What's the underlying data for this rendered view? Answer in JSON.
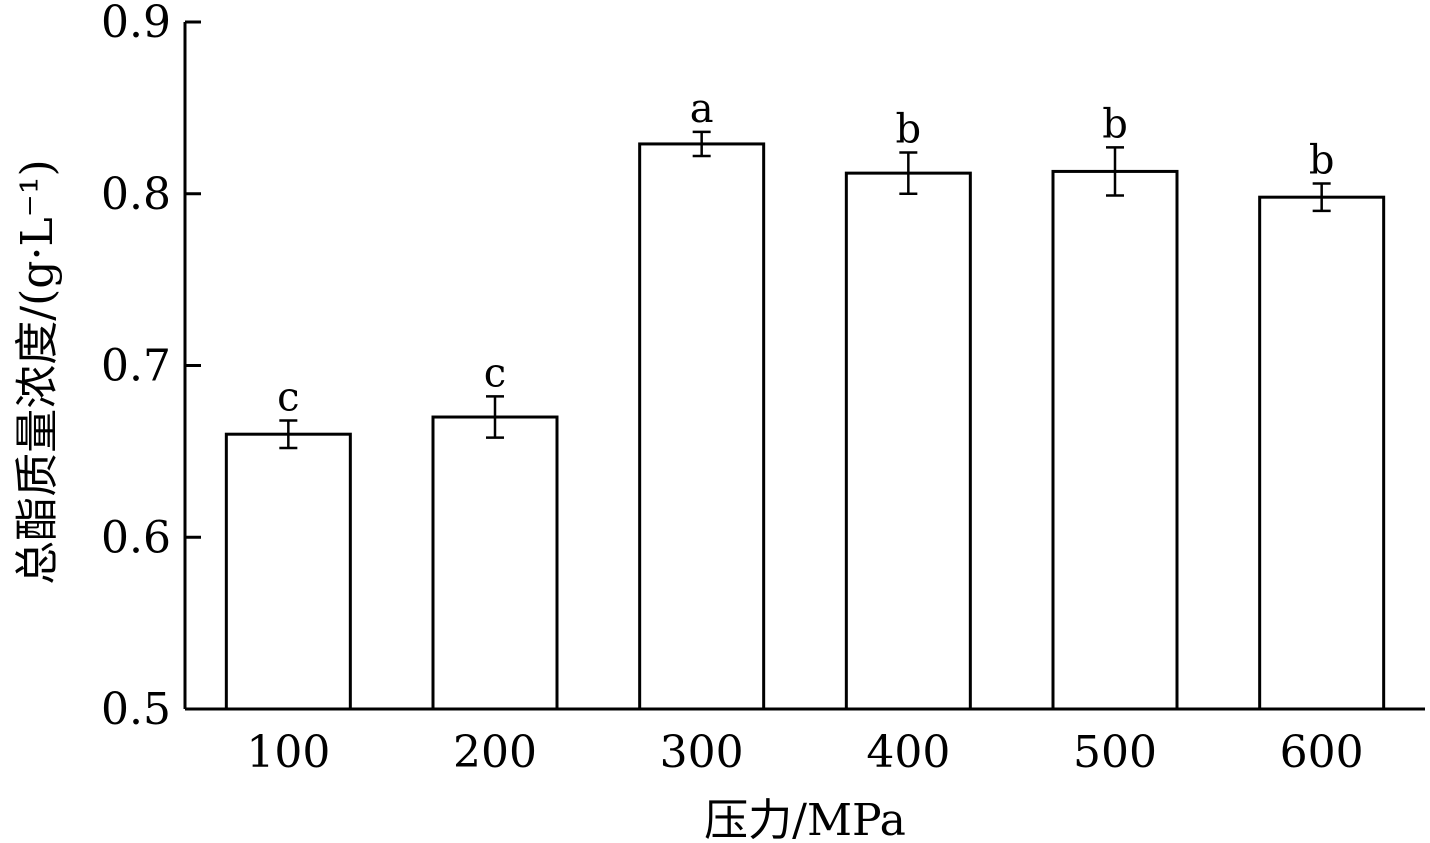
{
  "chart_data": {
    "type": "bar",
    "categories": [
      "100",
      "200",
      "300",
      "400",
      "500",
      "600"
    ],
    "values": [
      0.66,
      0.67,
      0.829,
      0.812,
      0.813,
      0.798
    ],
    "errors": [
      0.008,
      0.012,
      0.007,
      0.012,
      0.014,
      0.008
    ],
    "significance": [
      "c",
      "c",
      "a",
      "b",
      "b",
      "b"
    ],
    "xlabel": "压力/MPa",
    "ylabel": "总酯质量浓度/(g·L⁻¹)",
    "ylim": [
      0.5,
      0.9
    ],
    "yticks": [
      "0.5",
      "0.6",
      "0.7",
      "0.8",
      "0.9"
    ],
    "grid": false,
    "colors": {
      "bar_fill": "#ffffff",
      "bar_edge": "#000000",
      "axis": "#000000"
    }
  }
}
